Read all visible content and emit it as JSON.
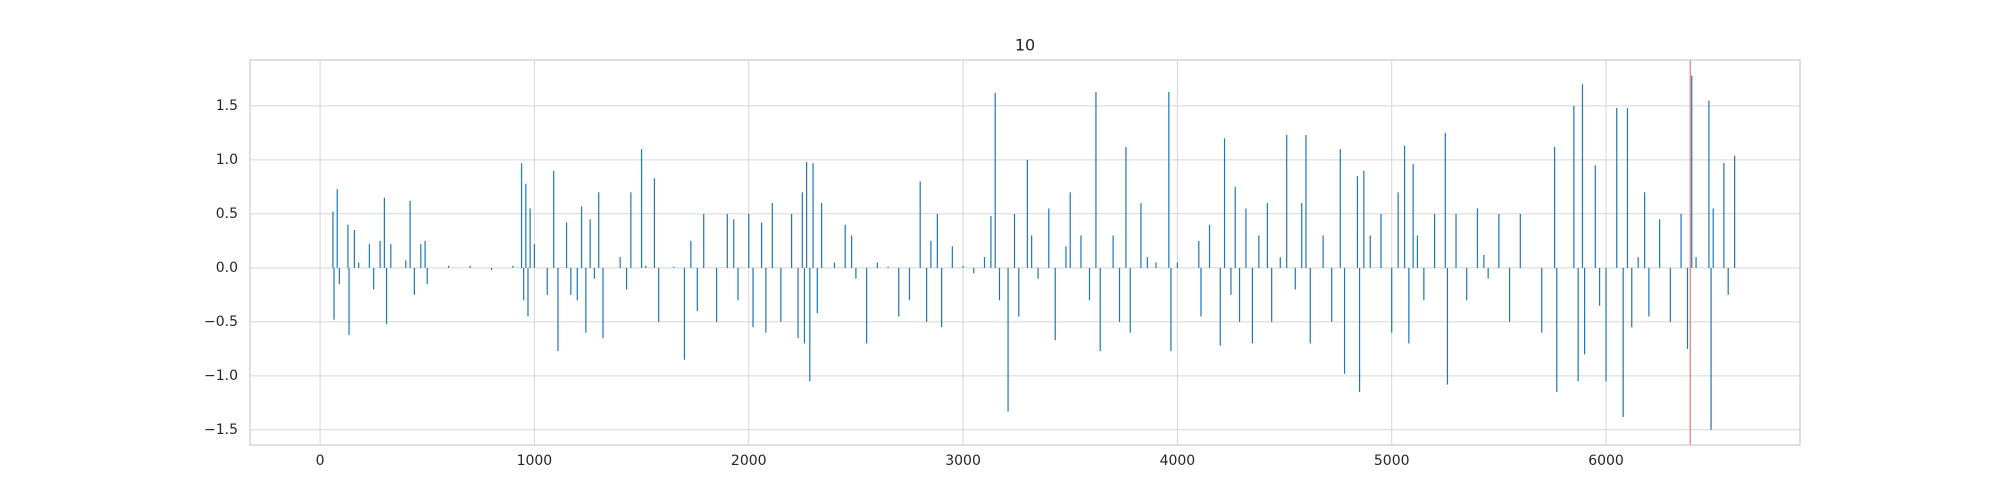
{
  "chart_data": {
    "type": "bar",
    "title": "10",
    "color": "#1f77b4",
    "grid": true,
    "xlim": [
      -327,
      6905
    ],
    "ylim": [
      -1.64,
      1.925
    ],
    "xticks": [
      0,
      1000,
      2000,
      3000,
      4000,
      5000,
      6000
    ],
    "yticks": [
      {
        "value": -1.5,
        "label": "−1.5"
      },
      {
        "value": -1.0,
        "label": "−1.0"
      },
      {
        "value": -0.5,
        "label": "−0.5"
      },
      {
        "value": 0.0,
        "label": "0.0"
      },
      {
        "value": 0.5,
        "label": "0.5"
      },
      {
        "value": 1.0,
        "label": "1.0"
      },
      {
        "value": 1.5,
        "label": "1.5"
      }
    ],
    "vline": {
      "x": 6393,
      "color": "#f08080"
    },
    "x": [
      60,
      65,
      80,
      90,
      130,
      135,
      160,
      180,
      230,
      250,
      280,
      300,
      310,
      330,
      400,
      420,
      440,
      470,
      490,
      500,
      600,
      700,
      800,
      900,
      940,
      950,
      960,
      970,
      980,
      1000,
      1060,
      1090,
      1110,
      1150,
      1170,
      1200,
      1220,
      1240,
      1260,
      1280,
      1300,
      1320,
      1400,
      1430,
      1450,
      1500,
      1520,
      1560,
      1580,
      1650,
      1700,
      1730,
      1760,
      1790,
      1850,
      1900,
      1930,
      1950,
      2000,
      2020,
      2060,
      2080,
      2110,
      2150,
      2200,
      2230,
      2250,
      2260,
      2270,
      2285,
      2300,
      2320,
      2340,
      2400,
      2450,
      2480,
      2500,
      2550,
      2600,
      2650,
      2700,
      2750,
      2800,
      2830,
      2850,
      2880,
      2900,
      2950,
      3000,
      3050,
      3100,
      3130,
      3150,
      3170,
      3210,
      3240,
      3260,
      3300,
      3320,
      3350,
      3400,
      3430,
      3480,
      3500,
      3550,
      3590,
      3620,
      3640,
      3700,
      3730,
      3760,
      3780,
      3830,
      3860,
      3900,
      3960,
      3970,
      4000,
      4100,
      4110,
      4150,
      4200,
      4220,
      4250,
      4270,
      4290,
      4320,
      4350,
      4380,
      4420,
      4440,
      4480,
      4510,
      4550,
      4580,
      4600,
      4620,
      4680,
      4720,
      4760,
      4780,
      4840,
      4850,
      4870,
      4900,
      4950,
      5000,
      5030,
      5060,
      5080,
      5100,
      5120,
      5150,
      5200,
      5250,
      5260,
      5300,
      5350,
      5400,
      5430,
      5450,
      5500,
      5550,
      5600,
      5700,
      5760,
      5770,
      5850,
      5870,
      5890,
      5900,
      5950,
      5970,
      6000,
      6050,
      6080,
      6100,
      6120,
      6150,
      6180,
      6200,
      6250,
      6300,
      6350,
      6380,
      6400,
      6420,
      6480,
      6490,
      6500,
      6550,
      6570,
      6600
    ],
    "values": [
      0.52,
      -0.48,
      0.73,
      -0.15,
      0.4,
      -0.62,
      0.35,
      0.05,
      0.22,
      -0.2,
      0.25,
      0.65,
      -0.52,
      0.22,
      0.07,
      0.62,
      -0.25,
      0.22,
      0.25,
      -0.15,
      0.02,
      0.02,
      -0.02,
      0.02,
      0.97,
      -0.3,
      0.78,
      -0.45,
      0.55,
      0.22,
      -0.25,
      0.9,
      -0.77,
      0.42,
      -0.25,
      -0.3,
      0.57,
      -0.6,
      0.45,
      -0.1,
      0.7,
      -0.65,
      0.1,
      -0.2,
      0.7,
      1.1,
      0.02,
      0.83,
      -0.5,
      0.01,
      -0.85,
      0.25,
      -0.4,
      0.5,
      -0.5,
      0.5,
      0.45,
      -0.3,
      0.5,
      -0.55,
      0.42,
      -0.6,
      0.6,
      -0.5,
      0.5,
      -0.65,
      0.7,
      -0.7,
      0.98,
      -1.05,
      0.97,
      -0.42,
      0.6,
      0.05,
      0.4,
      0.3,
      -0.1,
      -0.7,
      0.05,
      0.01,
      -0.45,
      -0.3,
      0.8,
      -0.5,
      0.25,
      0.5,
      -0.55,
      0.2,
      0.02,
      -0.05,
      0.1,
      0.48,
      1.62,
      -0.3,
      -1.33,
      0.5,
      -0.45,
      1.0,
      0.3,
      -0.1,
      0.55,
      -0.67,
      0.2,
      0.7,
      0.3,
      -0.3,
      1.63,
      -0.77,
      0.3,
      -0.5,
      1.12,
      -0.6,
      0.6,
      0.1,
      0.05,
      1.63,
      -0.77,
      0.05,
      0.25,
      -0.45,
      0.4,
      -0.72,
      1.2,
      -0.25,
      0.75,
      -0.5,
      0.55,
      -0.7,
      0.3,
      0.6,
      -0.5,
      0.1,
      1.23,
      -0.2,
      0.6,
      1.23,
      -0.7,
      0.3,
      -0.5,
      1.1,
      -0.98,
      0.85,
      -1.15,
      0.9,
      0.3,
      0.5,
      -0.6,
      0.7,
      1.13,
      -0.7,
      0.96,
      0.3,
      -0.3,
      0.5,
      1.25,
      -1.08,
      0.5,
      -0.3,
      0.55,
      0.12,
      -0.1,
      0.5,
      -0.5,
      0.5,
      -0.6,
      1.12,
      -1.15,
      1.5,
      -1.05,
      1.7,
      -0.8,
      0.95,
      -0.35,
      -1.05,
      1.48,
      -1.38,
      1.48,
      -0.55,
      0.1,
      0.7,
      -0.45,
      0.45,
      -0.5,
      0.5,
      -0.75,
      1.78,
      0.1,
      1.55,
      -1.5,
      0.55,
      0.97,
      -0.25,
      1.04
    ]
  }
}
